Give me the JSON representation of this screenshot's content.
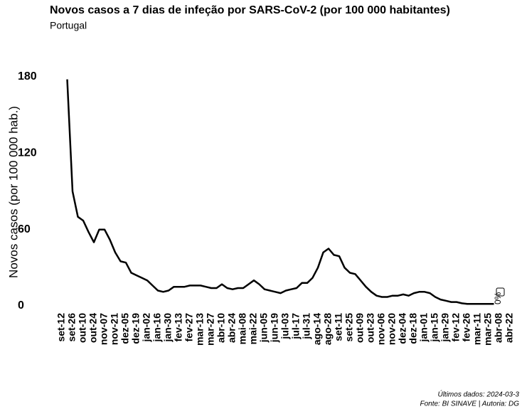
{
  "chart_data": {
    "type": "line",
    "title": "Novos casos a 7 dias de infeção por SARS-CoV-2 (por 100 000 habitantes)",
    "subtitle": "Portugal",
    "y_label": "Novos casos (por 100 000 hab.)",
    "annotation": "0%",
    "footer": [
      "Últimos dados: 2024-03-3",
      "Fonte: BI SINAVE | Autoria: DG"
    ],
    "categories": [
      "set-12",
      null,
      "set-26",
      null,
      "out-10",
      null,
      "out-24",
      null,
      "nov-07",
      null,
      "nov-21",
      null,
      "dez-05",
      null,
      "dez-19",
      null,
      "jan-02",
      null,
      "jan-16",
      null,
      "jan-30",
      null,
      "fev-13",
      null,
      "fev-27",
      null,
      "mar-13",
      null,
      "mar-27",
      null,
      "abr-10",
      null,
      "abr-24",
      null,
      "mai-08",
      null,
      "mai-22",
      null,
      "jun-05",
      null,
      "jun-19",
      null,
      "jul-03",
      null,
      "jul-17",
      null,
      "jul-31",
      null,
      "ago-14",
      null,
      "ago-28",
      null,
      "set-11",
      null,
      "set-25",
      null,
      "out-09",
      null,
      "out-23",
      null,
      "nov-06",
      null,
      "nov-20",
      null,
      "dez-04",
      null,
      "dez-18",
      null,
      "jan-01",
      null,
      "jan-15",
      null,
      "jan-29",
      null,
      "fev-12",
      null,
      "fev-26",
      null,
      "mar-11",
      null,
      "mar-25",
      null,
      "abr-08",
      null,
      "abr-22"
    ],
    "values": [
      null,
      178,
      90,
      70,
      67,
      58,
      50,
      60,
      60,
      52,
      42,
      35,
      34,
      26,
      24,
      22,
      20,
      16,
      12,
      11,
      12,
      15,
      15,
      15,
      16,
      16,
      16,
      15,
      14,
      14,
      17,
      14,
      13,
      14,
      14,
      17,
      20,
      17,
      13,
      12,
      11,
      10,
      12,
      13,
      14,
      18,
      18,
      22,
      30,
      42,
      45,
      40,
      39,
      30,
      26,
      25,
      20,
      15,
      11,
      8,
      7,
      7,
      8,
      8,
      9,
      8,
      10,
      11,
      11,
      10,
      7,
      5,
      4,
      3,
      3,
      2,
      1.5,
      1.5,
      1.5,
      1.5,
      1.5,
      1.5,
      null,
      null,
      null
    ],
    "color": "#000000",
    "ylim": [
      0,
      180
    ],
    "yticks": [
      0,
      60,
      120,
      180
    ],
    "grid": false
  }
}
